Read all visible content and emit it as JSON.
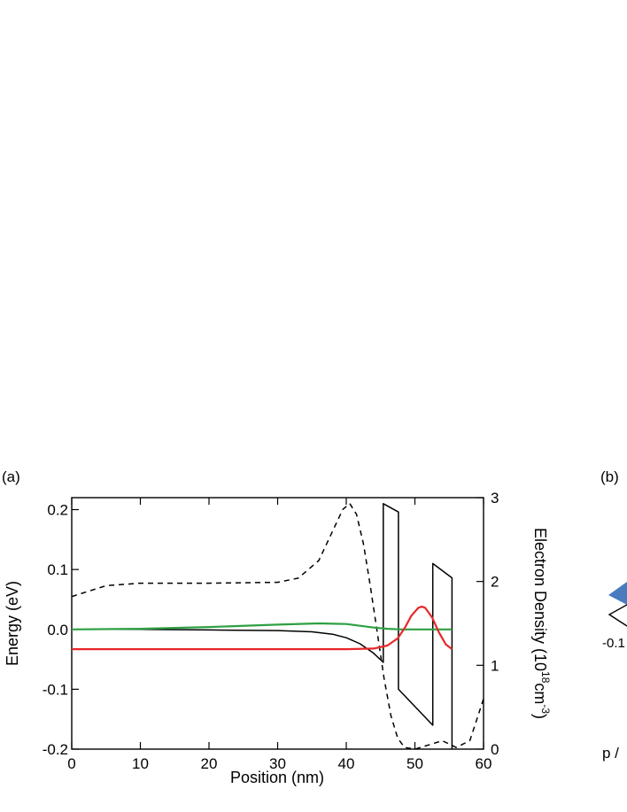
{
  "panel_a_label": "(a)",
  "panel_b_label": "(b)",
  "panel_b_text_1": "-0.1",
  "panel_b_text_2": "p /",
  "chart_data": {
    "type": "line",
    "title": "",
    "xlabel": "Position (nm)",
    "ylabel_left": "Energy (eV)",
    "ylabel_right_parts": {
      "main": "Electron Density (10",
      "sup1": "18",
      "mid": "cm",
      "sup2": "-3",
      "end": ")"
    },
    "xlim": [
      0,
      60
    ],
    "ylim_left": [
      -0.2,
      0.22
    ],
    "ylim_right": [
      0,
      3
    ],
    "x_ticks": [
      0,
      10,
      20,
      30,
      40,
      50,
      60
    ],
    "y_left_ticks": [
      0.2,
      0.1,
      0.0,
      -0.1,
      -0.2
    ],
    "y_left_tick_labels": [
      "0.2",
      "0.1",
      "0.0",
      "-0.1",
      "-0.2"
    ],
    "y_right_ticks": [
      0,
      1,
      2,
      3
    ],
    "grid": false,
    "series": [
      {
        "color": "#000000",
        "style": "solid",
        "axis": "left",
        "x": [
          0,
          10,
          20,
          30,
          35,
          38,
          40,
          42,
          44,
          45.4,
          45.4,
          47.6,
          47.6,
          52.6,
          52.6,
          55.4,
          55.4
        ],
        "y": [
          0.0,
          0.0,
          -0.001,
          -0.002,
          -0.004,
          -0.008,
          -0.014,
          -0.024,
          -0.04,
          -0.055,
          0.21,
          0.196,
          -0.1,
          -0.16,
          0.11,
          0.086,
          -0.21
        ]
      },
      {
        "color": "#000000",
        "style": "dashed",
        "axis": "right",
        "x": [
          0,
          5,
          10,
          20,
          30,
          33,
          36,
          38,
          39.5,
          40.5,
          41.5,
          42.5,
          43.5,
          44.5,
          45.5,
          46.5,
          47.5,
          48.5,
          50,
          52,
          54,
          56,
          58,
          59,
          60
        ],
        "y": [
          1.82,
          1.95,
          1.98,
          1.98,
          1.99,
          2.04,
          2.25,
          2.6,
          2.86,
          2.93,
          2.8,
          2.45,
          1.95,
          1.4,
          0.85,
          0.4,
          0.13,
          0.02,
          0.0,
          0.05,
          0.1,
          0.02,
          0.1,
          0.35,
          0.6
        ]
      },
      {
        "color": "#2ea043",
        "style": "solid",
        "axis": "left",
        "x": [
          0,
          10,
          20,
          30,
          36,
          40,
          42,
          44,
          46,
          48,
          50,
          52,
          55.4
        ],
        "y": [
          0.0,
          0.001,
          0.004,
          0.008,
          0.01,
          0.009,
          0.006,
          0.003,
          0.001,
          0.0,
          0.0,
          0.0,
          0.0
        ]
      },
      {
        "color": "#e8272a",
        "style": "solid",
        "axis": "left",
        "x": [
          0,
          20,
          40,
          44,
          46,
          47.5,
          48.5,
          49.5,
          50.5,
          51,
          51.5,
          52.5,
          53.5,
          54.5,
          55.4
        ],
        "y": [
          -0.033,
          -0.033,
          -0.033,
          -0.032,
          -0.027,
          -0.015,
          0.002,
          0.023,
          0.036,
          0.038,
          0.036,
          0.02,
          -0.005,
          -0.025,
          -0.033
        ]
      }
    ]
  },
  "panel_b_fragment": {
    "shape_color": "#4a7bbf"
  }
}
